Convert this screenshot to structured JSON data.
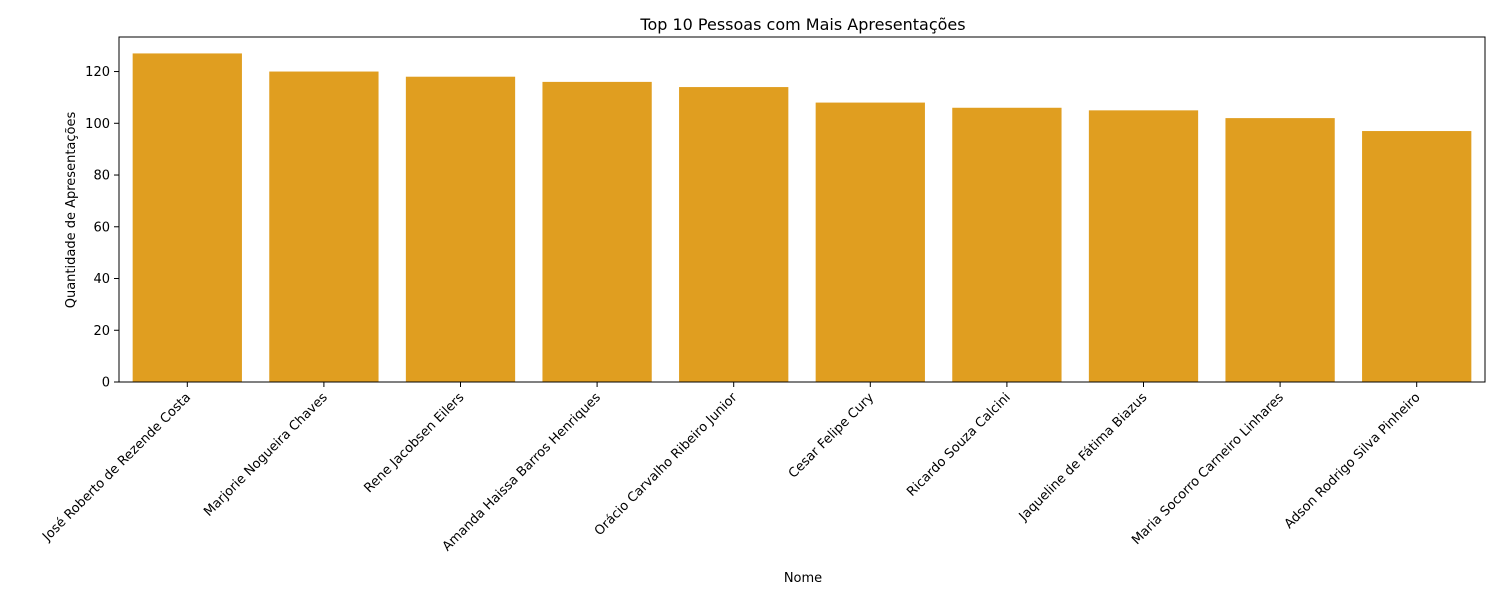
{
  "chart_data": {
    "type": "bar",
    "title": "Top 10 Pessoas com Mais Apresentações",
    "xlabel": "Nome",
    "ylabel": "Quantidade de Apresentações",
    "categories": [
      "José Roberto de Rezende Costa",
      "Marjorie Nogueira Chaves",
      "Rene Jacobsen Eilers",
      "Amanda Haissa Barros Henriques",
      "Orácio Carvalho Ribeiro Junior",
      "Cesar Felipe Cury",
      "Ricardo Souza Calcini",
      "Jaqueline de Fátima Biazus",
      "Maria Socorro Carneiro Linhares",
      "Adson Rodrigo Silva Pinheiro"
    ],
    "values": [
      127,
      120,
      118,
      116,
      114,
      108,
      106,
      105,
      102,
      97
    ],
    "ylim": [
      0,
      133.35
    ],
    "yticks": [
      0,
      20,
      40,
      60,
      80,
      100,
      120
    ],
    "grid": false,
    "bar_color": "#e09e20"
  }
}
